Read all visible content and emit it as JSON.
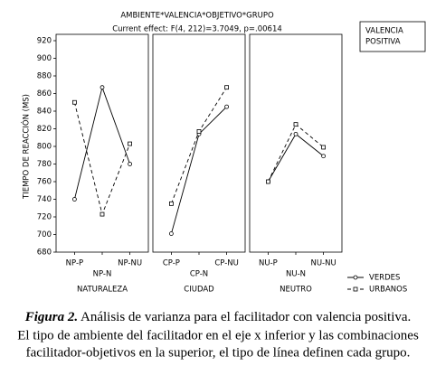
{
  "title": "AMBIENTE*VALENCIA*OBJETIVO*GRUPO",
  "subtitle": "Current effect: F(4, 212)=3.7049, p=.00614",
  "annotation": [
    "VALENCIA",
    "POSITIVA"
  ],
  "ylabel": "TIEMPO DE REACCIÓN (MS)",
  "chart_data": [
    {
      "type": "line",
      "xlabel": "NATURALEZA",
      "categories": [
        "NP-P",
        "NP-N",
        "NP-NU"
      ],
      "ylim": [
        680,
        920
      ],
      "yticks": [
        680,
        700,
        720,
        740,
        760,
        780,
        800,
        820,
        840,
        860,
        880,
        900,
        920
      ],
      "series": [
        {
          "name": "VERDES",
          "color": "#000000",
          "values": [
            740,
            867,
            780
          ]
        },
        {
          "name": "URBANOS",
          "color": "#000000",
          "values": [
            850,
            723,
            803
          ]
        }
      ]
    },
    {
      "type": "line",
      "xlabel": "CIUDAD",
      "categories": [
        "CP-P",
        "CP-N",
        "CP-NU"
      ],
      "ylim": [
        680,
        920
      ],
      "series": [
        {
          "name": "VERDES",
          "color": "#000000",
          "values": [
            701,
            814,
            845
          ]
        },
        {
          "name": "URBANOS",
          "color": "#000000",
          "values": [
            735,
            817,
            867
          ]
        }
      ]
    },
    {
      "type": "line",
      "xlabel": "NEUTRO",
      "categories": [
        "NU-P",
        "NU-N",
        "NU-NU"
      ],
      "ylim": [
        680,
        920
      ],
      "series": [
        {
          "name": "VERDES",
          "color": "#000000",
          "values": [
            760,
            814,
            789
          ]
        },
        {
          "name": "URBANOS",
          "color": "#000000",
          "values": [
            760,
            825,
            799
          ]
        }
      ]
    }
  ],
  "caption": {
    "label": "Figura 2.",
    "lines": [
      "Análisis de varianza para el facilitador con valencia positiva.",
      "El tipo de ambiente del facilitador en el eje x inferior y las combinaciones",
      "facilitador-objetivos en la superior, el tipo de línea definen cada grupo."
    ]
  }
}
